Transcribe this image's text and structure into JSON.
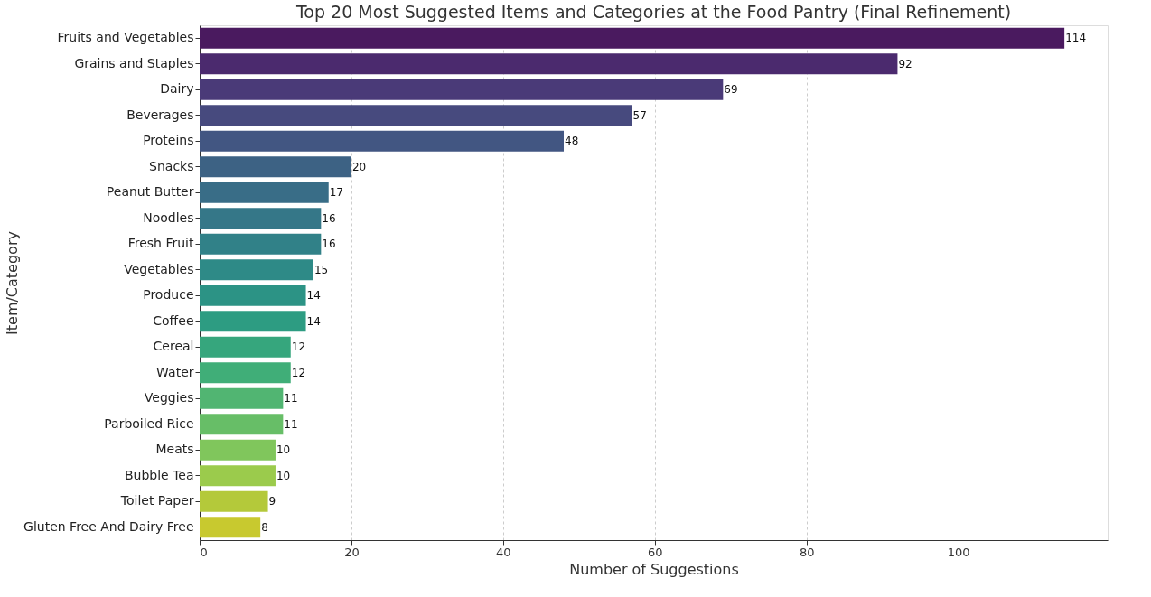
{
  "chart_data": {
    "type": "bar",
    "orientation": "horizontal",
    "title": "Top 20 Most Suggested Items and Categories at the Food Pantry (Final Refinement)",
    "xlabel": "Number of Suggestions",
    "ylabel": "Item/Category",
    "categories": [
      "Fruits and Vegetables",
      "Grains and Staples",
      "Dairy",
      "Beverages",
      "Proteins",
      "Snacks",
      "Peanut Butter",
      "Noodles",
      "Fresh Fruit",
      "Vegetables",
      "Produce",
      "Coffee",
      "Cereal",
      "Water",
      "Veggies",
      "Parboiled Rice",
      "Meats",
      "Bubble Tea",
      "Toilet Paper",
      "Gluten Free And Dairy Free"
    ],
    "values": [
      114,
      92,
      69,
      57,
      48,
      20,
      17,
      16,
      16,
      15,
      14,
      14,
      12,
      12,
      11,
      11,
      10,
      10,
      9,
      8
    ],
    "colors": [
      "#4a1a5f",
      "#4b2a6e",
      "#4a3a78",
      "#474a7e",
      "#425682",
      "#3d6284",
      "#396d87",
      "#357788",
      "#318188",
      "#2e8a87",
      "#2c9385",
      "#2d9c82",
      "#36a67d",
      "#40ae78",
      "#51b572",
      "#67be67",
      "#80c65c",
      "#9bcb4c",
      "#b4c93a",
      "#c8c92f"
    ],
    "xlim": [
      0,
      119.7
    ],
    "xticks": [
      0,
      20,
      40,
      60,
      80,
      100
    ],
    "grid": "x",
    "data_labels": true,
    "legend": false
  }
}
